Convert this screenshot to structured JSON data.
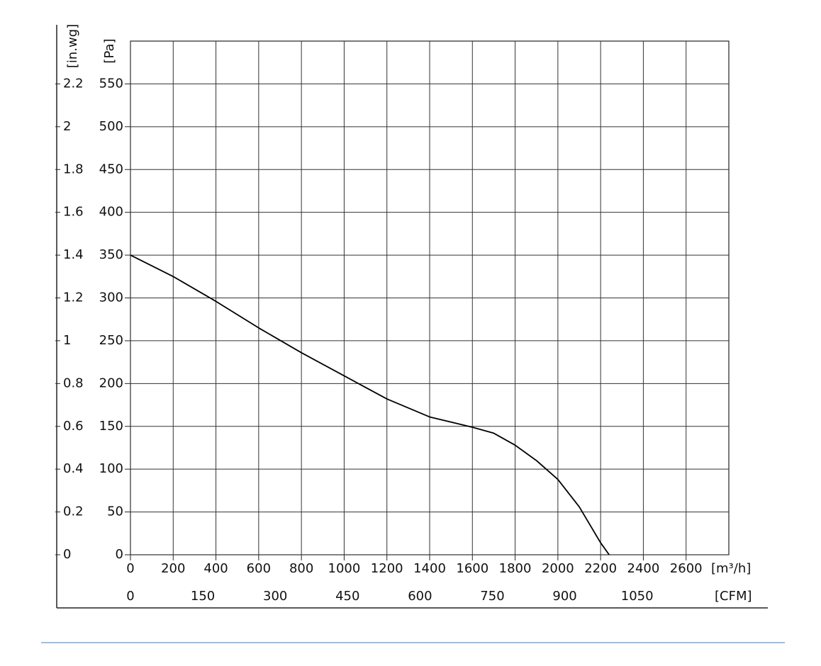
{
  "chart_data": {
    "type": "line",
    "x_label": "[m³/h]",
    "x2_label": "[CFM]",
    "y_label": "[Pa]",
    "y2_label": "[in.wg]",
    "x": [
      0,
      200,
      400,
      600,
      800,
      1000,
      1200,
      1400,
      1600,
      1700,
      1800,
      1900,
      2000,
      2100,
      2200,
      2240
    ],
    "values": [
      350,
      325,
      296,
      265,
      236,
      209,
      182,
      161,
      149,
      142,
      128,
      110,
      88,
      56,
      14,
      0
    ],
    "color": "#000000",
    "xlim": [
      0,
      2800
    ],
    "xticks": [
      0,
      200,
      400,
      600,
      800,
      1000,
      1200,
      1400,
      1600,
      1800,
      2000,
      2200,
      2400,
      2600
    ],
    "x2lim": [
      0,
      1240
    ],
    "x2ticks": [
      0,
      150,
      300,
      450,
      600,
      750,
      900,
      1050
    ],
    "ylim": [
      0,
      600
    ],
    "yticks": [
      0,
      50,
      100,
      150,
      200,
      250,
      300,
      350,
      400,
      450,
      500,
      550
    ],
    "y2lim": [
      0,
      2.4
    ],
    "y2ticks": [
      0,
      0.2,
      0.4,
      0.6,
      0.8,
      1.0,
      1.2,
      1.4,
      1.6,
      1.8,
      2.0,
      2.2
    ],
    "grid": true
  }
}
